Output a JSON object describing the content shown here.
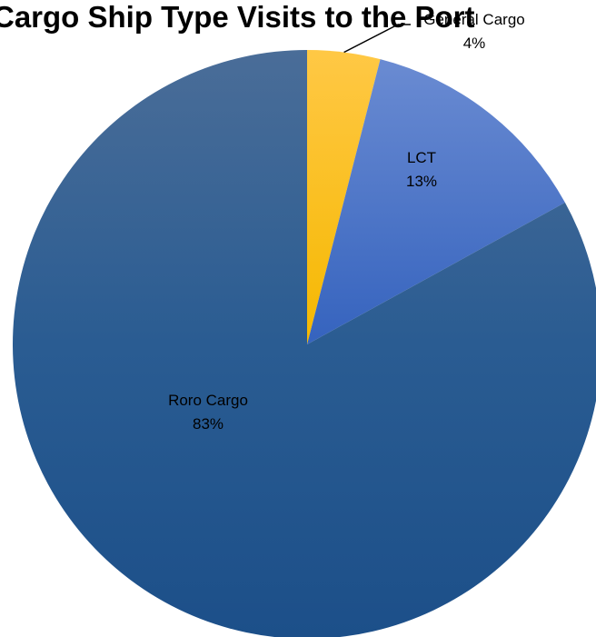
{
  "chart_data": {
    "type": "pie",
    "title": "Cargo Ship Type Visits to the Port",
    "start_angle_deg": 0,
    "direction": "clockwise",
    "slices": [
      {
        "label": "General Cargo",
        "value": 4,
        "value_label": "4%",
        "color": "#FFC000",
        "label_color": "#000000",
        "label_placement": "outside-leader"
      },
      {
        "label": "LCT",
        "value": 13,
        "value_label": "13%",
        "color": "#4472C4",
        "label_color": "#000000",
        "label_placement": "inside"
      },
      {
        "label": "Roro Cargo",
        "value": 83,
        "value_label": "83%",
        "color": "#1F5590",
        "label_color": "#000000",
        "label_placement": "inside"
      }
    ]
  }
}
